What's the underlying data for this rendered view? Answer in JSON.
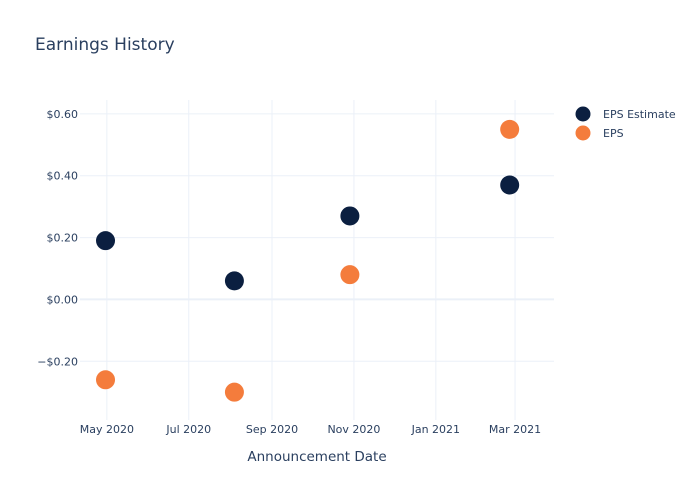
{
  "chart_data": {
    "type": "scatter",
    "title": "Earnings History",
    "xlabel": "Announcement Date",
    "ylabel": "",
    "x_axis": {
      "type": "date",
      "range": [
        "2020-04-11",
        "2021-03-30"
      ],
      "ticks": [
        {
          "date": "2020-05-01",
          "label": "May 2020"
        },
        {
          "date": "2020-07-01",
          "label": "Jul 2020"
        },
        {
          "date": "2020-09-01",
          "label": "Sep 2020"
        },
        {
          "date": "2020-11-01",
          "label": "Nov 2020"
        },
        {
          "date": "2021-01-01",
          "label": "Jan 2021"
        },
        {
          "date": "2021-03-01",
          "label": "Mar 2021"
        }
      ]
    },
    "y_axis": {
      "range": [
        -0.39,
        0.645
      ],
      "ticks": [
        {
          "value": -0.2,
          "label": "−$0.20"
        },
        {
          "value": 0.0,
          "label": "$0.00"
        },
        {
          "value": 0.2,
          "label": "$0.20"
        },
        {
          "value": 0.4,
          "label": "$0.40"
        },
        {
          "value": 0.6,
          "label": "$0.60"
        }
      ]
    },
    "grid": true,
    "legend_position": "top-right",
    "series": [
      {
        "name": "EPS Estimate",
        "color": "#0b1f40",
        "points": [
          {
            "x": "2020-04-30",
            "y": 0.19
          },
          {
            "x": "2020-08-04",
            "y": 0.06
          },
          {
            "x": "2020-10-29",
            "y": 0.27
          },
          {
            "x": "2021-02-25",
            "y": 0.37
          }
        ]
      },
      {
        "name": "EPS",
        "color": "#f47c3c",
        "points": [
          {
            "x": "2020-04-30",
            "y": -0.26
          },
          {
            "x": "2020-08-04",
            "y": -0.3
          },
          {
            "x": "2020-10-29",
            "y": 0.08
          },
          {
            "x": "2021-02-25",
            "y": 0.55
          }
        ]
      }
    ]
  }
}
